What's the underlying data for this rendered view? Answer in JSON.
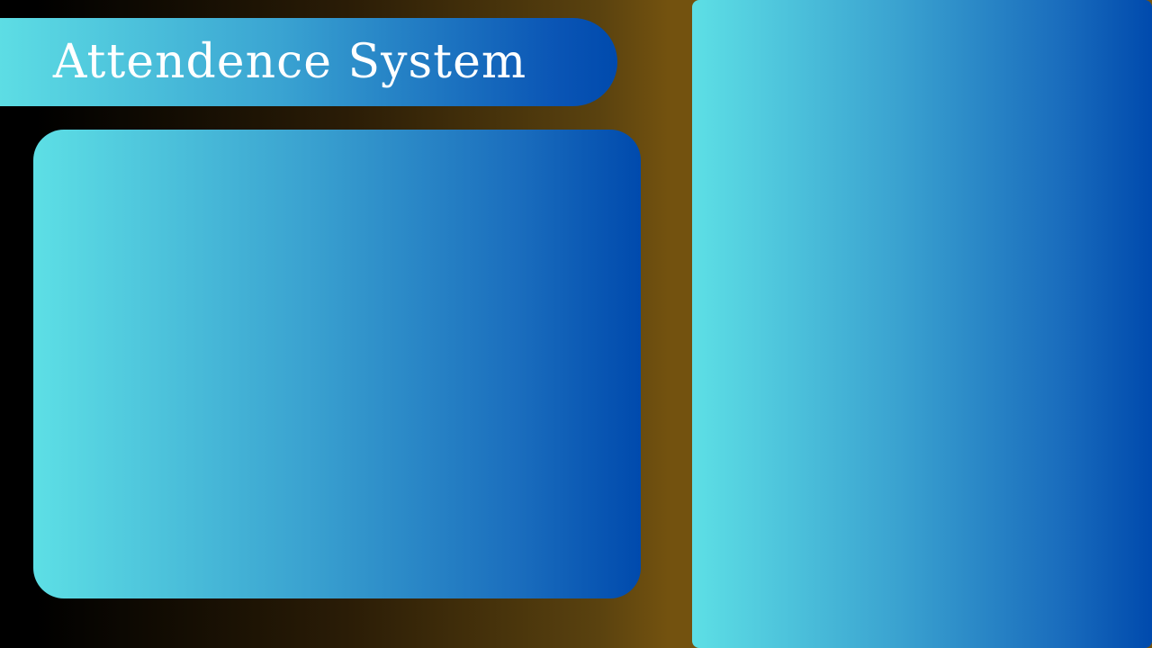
{
  "header": {
    "title": "Attendence System"
  },
  "colors": {
    "gradient_start": "#5ddfe5",
    "gradient_end": "#004aad",
    "background_dark": "#000000",
    "background_gold": "#73520f",
    "title_text": "#ffffff"
  }
}
